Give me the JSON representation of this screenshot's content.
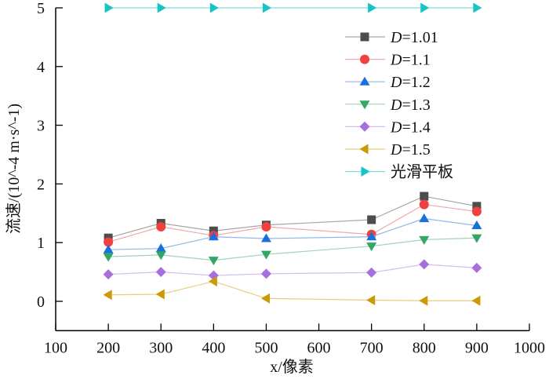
{
  "chart_data": {
    "type": "line",
    "title": "",
    "xlabel": "x/像素",
    "xlabel_var": "x",
    "xlabel_unit": "/像素",
    "ylabel": "流速/(10^-4 m·s^-1)",
    "ylabel_parts": {
      "prefix": "流速/(10",
      "exp1": "-4",
      "mid": " m·s",
      "exp2": "-1",
      "suffix": ")"
    },
    "xlim": [
      100,
      1000
    ],
    "ylim": [
      -0.5,
      5
    ],
    "xticks": [
      "100",
      "200",
      "300",
      "400",
      "500",
      "600",
      "700",
      "800",
      "900",
      "1000"
    ],
    "yticks": [
      "0",
      "1",
      "2",
      "3",
      "4",
      "5"
    ],
    "grid": false,
    "legend_position": "top-right",
    "x": [
      200,
      300,
      400,
      500,
      700,
      800,
      900
    ],
    "series": [
      {
        "name": "D=1.01",
        "var": "D",
        "label": "=1.01",
        "marker": "square",
        "color": "#4d4d4d",
        "line_color": "#a6a6a6",
        "values": [
          1.08,
          1.33,
          1.2,
          1.3,
          1.39,
          1.79,
          1.62
        ]
      },
      {
        "name": "D=1.1",
        "var": "D",
        "label": "=1.1",
        "marker": "circle",
        "color": "#f04040",
        "line_color": "#f2a8a8",
        "values": [
          1.01,
          1.27,
          1.12,
          1.27,
          1.14,
          1.65,
          1.53
        ]
      },
      {
        "name": "D=1.2",
        "var": "D",
        "label": "=1.2",
        "marker": "triangle-up",
        "color": "#1a6fdc",
        "line_color": "#8fb8ea",
        "values": [
          0.88,
          0.9,
          1.1,
          1.07,
          1.1,
          1.41,
          1.29
        ]
      },
      {
        "name": "D=1.3",
        "var": "D",
        "label": "=1.3",
        "marker": "triangle-down",
        "color": "#33a865",
        "line_color": "#9ed4b3",
        "values": [
          0.76,
          0.79,
          0.7,
          0.8,
          0.94,
          1.05,
          1.08
        ]
      },
      {
        "name": "D=1.4",
        "var": "D",
        "label": "=1.4",
        "marker": "diamond",
        "color": "#a66fdb",
        "line_color": "#d6bdf0",
        "values": [
          0.46,
          0.5,
          0.44,
          0.47,
          0.49,
          0.63,
          0.57
        ]
      },
      {
        "name": "D=1.5",
        "var": "D",
        "label": "=1.5",
        "marker": "triangle-left",
        "color": "#cc9a06",
        "line_color": "#e6cd7f",
        "values": [
          0.11,
          0.12,
          0.34,
          0.05,
          0.02,
          0.01,
          0.01
        ]
      },
      {
        "name": "光滑平板",
        "var": "",
        "label": "光滑平板",
        "marker": "triangle-right",
        "color": "#17c4c4",
        "line_color": "#7fdede",
        "values": [
          5,
          5,
          5,
          5,
          5,
          5,
          5
        ]
      }
    ]
  }
}
